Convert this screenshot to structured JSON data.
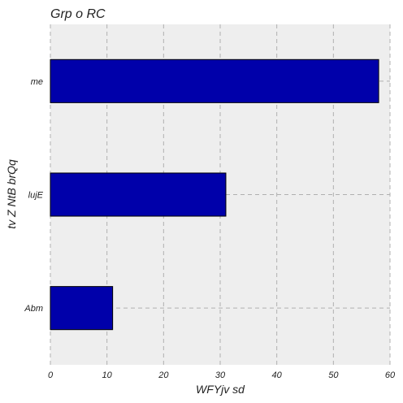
{
  "chart_data": {
    "type": "bar",
    "orientation": "horizontal",
    "title": "Grp o RC",
    "xlabel": "WFYjv sd",
    "ylabel": "tv Z NtB brQq",
    "categories": [
      "Abm",
      "lujE",
      "me"
    ],
    "values": [
      11,
      31,
      58
    ],
    "xlim": [
      0,
      60
    ],
    "xticks": [
      0,
      10,
      20,
      30,
      40,
      50,
      60
    ],
    "grid": true,
    "bar_color": "#0000aa",
    "background_color": "#eeeeee"
  }
}
